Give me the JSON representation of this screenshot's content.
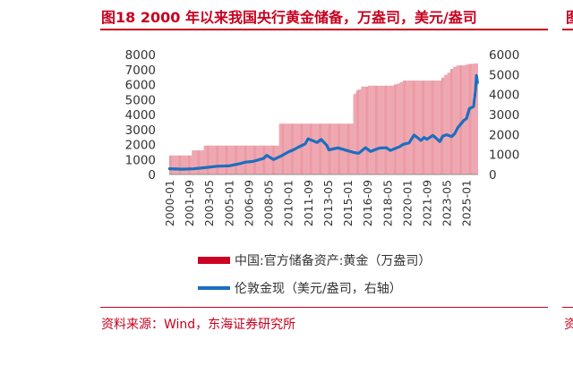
{
  "figure": {
    "title": "图18  2000 年以来我国央行黄金储备，万盎司，美元/盎司",
    "edge_title_fragment": "图",
    "source": "资料来源：Wind，东海证券研究所",
    "edge_source_fragment": "资",
    "accent_color": "#c8001e"
  },
  "chart_data": {
    "type": "bar+line",
    "left_axis": {
      "min": 0,
      "max": 8000,
      "ticks": [
        0,
        1000,
        2000,
        3000,
        4000,
        5000,
        6000,
        7000,
        8000
      ]
    },
    "right_axis": {
      "min": 0,
      "max": 6000,
      "ticks": [
        0,
        1000,
        2000,
        3000,
        4000,
        5000,
        6000
      ]
    },
    "x_ticks": [
      "2000-01",
      "2001-09",
      "2003-05",
      "2005-01",
      "2006-09",
      "2008-05",
      "2010-01",
      "2011-09",
      "2013-05",
      "2015-01",
      "2016-09",
      "2018-05",
      "2020-01",
      "2021-09",
      "2023-05",
      "2025-01"
    ],
    "x_range": [
      "2000-01",
      "2025-12"
    ],
    "series": [
      {
        "name": "中国:官方储备资产:黄金（万盎司）",
        "kind": "bar",
        "axis": "left",
        "color": "#cc0022",
        "steps": [
          [
            "2000-01",
            1267
          ],
          [
            "2001-12",
            1608
          ],
          [
            "2002-12",
            1929
          ],
          [
            "2009-04",
            3389
          ],
          [
            "2015-07",
            5331
          ],
          [
            "2015-08",
            5393
          ],
          [
            "2015-10",
            5611
          ],
          [
            "2015-12",
            5666
          ],
          [
            "2016-03",
            5862
          ],
          [
            "2016-06",
            5861
          ],
          [
            "2016-10",
            5924
          ],
          [
            "2018-12",
            6008
          ],
          [
            "2019-03",
            6062
          ],
          [
            "2019-06",
            6161
          ],
          [
            "2019-09",
            6264
          ],
          [
            "2022-12",
            6464
          ],
          [
            "2023-03",
            6650
          ],
          [
            "2023-06",
            6795
          ],
          [
            "2023-09",
            7046
          ],
          [
            "2023-12",
            7187
          ],
          [
            "2024-03",
            7274
          ],
          [
            "2024-06",
            7280
          ],
          [
            "2024-12",
            7329
          ],
          [
            "2025-03",
            7370
          ],
          [
            "2025-06",
            7390
          ],
          [
            "2025-09",
            7406
          ],
          [
            "2025-12",
            7415
          ]
        ]
      },
      {
        "name": "伦敦金现（美元/盎司，右轴）",
        "kind": "line",
        "axis": "right",
        "color": "#1a6fbf",
        "points": [
          [
            "2000-01",
            285
          ],
          [
            "2001-01",
            265
          ],
          [
            "2002-01",
            280
          ],
          [
            "2003-01",
            340
          ],
          [
            "2004-01",
            410
          ],
          [
            "2005-01",
            430
          ],
          [
            "2006-01",
            550
          ],
          [
            "2006-06",
            620
          ],
          [
            "2007-01",
            650
          ],
          [
            "2007-12",
            800
          ],
          [
            "2008-03",
            960
          ],
          [
            "2008-10",
            750
          ],
          [
            "2009-06",
            930
          ],
          [
            "2009-12",
            1100
          ],
          [
            "2010-06",
            1230
          ],
          [
            "2010-12",
            1390
          ],
          [
            "2011-06",
            1530
          ],
          [
            "2011-09",
            1780
          ],
          [
            "2012-06",
            1600
          ],
          [
            "2012-10",
            1750
          ],
          [
            "2013-04",
            1450
          ],
          [
            "2013-06",
            1230
          ],
          [
            "2014-03",
            1330
          ],
          [
            "2014-12",
            1200
          ],
          [
            "2015-07",
            1100
          ],
          [
            "2015-12",
            1060
          ],
          [
            "2016-07",
            1340
          ],
          [
            "2016-12",
            1150
          ],
          [
            "2017-09",
            1320
          ],
          [
            "2018-04",
            1335
          ],
          [
            "2018-08",
            1200
          ],
          [
            "2019-06",
            1400
          ],
          [
            "2019-09",
            1510
          ],
          [
            "2020-03",
            1580
          ],
          [
            "2020-08",
            1970
          ],
          [
            "2021-03",
            1700
          ],
          [
            "2021-06",
            1850
          ],
          [
            "2021-09",
            1760
          ],
          [
            "2022-03",
            1950
          ],
          [
            "2022-10",
            1650
          ],
          [
            "2023-01",
            1920
          ],
          [
            "2023-05",
            1990
          ],
          [
            "2023-10",
            1900
          ],
          [
            "2024-01",
            2050
          ],
          [
            "2024-04",
            2330
          ],
          [
            "2024-10",
            2700
          ],
          [
            "2025-01",
            2800
          ],
          [
            "2025-04",
            3300
          ],
          [
            "2025-08",
            3400
          ],
          [
            "2025-10",
            4200
          ],
          [
            "2025-11",
            4950
          ],
          [
            "2025-12",
            4600
          ]
        ]
      }
    ],
    "legend_position": "bottom-center",
    "grid": false
  }
}
